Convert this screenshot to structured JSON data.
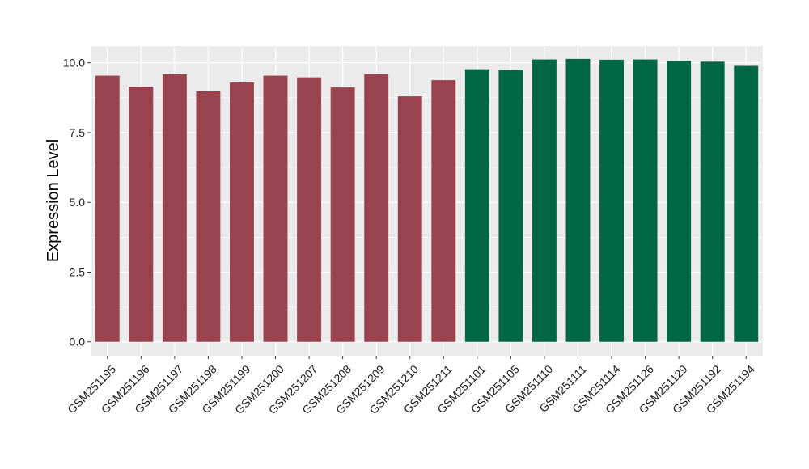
{
  "chart_data": {
    "type": "bar",
    "title": "",
    "xlabel": "",
    "ylabel": "Expression Level",
    "ylim": [
      -0.5,
      10.6
    ],
    "yticks": [
      0.0,
      2.5,
      5.0,
      7.5,
      10.0
    ],
    "ytick_labels": [
      "0.0",
      "2.5",
      "5.0",
      "7.5",
      "10.0"
    ],
    "grid": true,
    "legend": "none",
    "colors": {
      "group_1": "#9a4350",
      "group_2": "#006644",
      "panel": "#ebebeb",
      "gridline": "#ffffff"
    },
    "categories": [
      "GSM251195",
      "GSM251196",
      "GSM251197",
      "GSM251198",
      "GSM251199",
      "GSM251200",
      "GSM251207",
      "GSM251208",
      "GSM251209",
      "GSM251210",
      "GSM251211",
      "GSM251101",
      "GSM251105",
      "GSM251110",
      "GSM251111",
      "GSM251114",
      "GSM251126",
      "GSM251129",
      "GSM251192",
      "GSM251194"
    ],
    "values": [
      9.54,
      9.15,
      9.59,
      8.98,
      9.3,
      9.54,
      9.48,
      9.12,
      9.59,
      8.8,
      9.38,
      9.77,
      9.74,
      10.12,
      10.14,
      10.11,
      10.12,
      10.07,
      10.04,
      9.89
    ],
    "groups": [
      1,
      1,
      1,
      1,
      1,
      1,
      1,
      1,
      1,
      1,
      1,
      2,
      2,
      2,
      2,
      2,
      2,
      2,
      2,
      2
    ]
  }
}
